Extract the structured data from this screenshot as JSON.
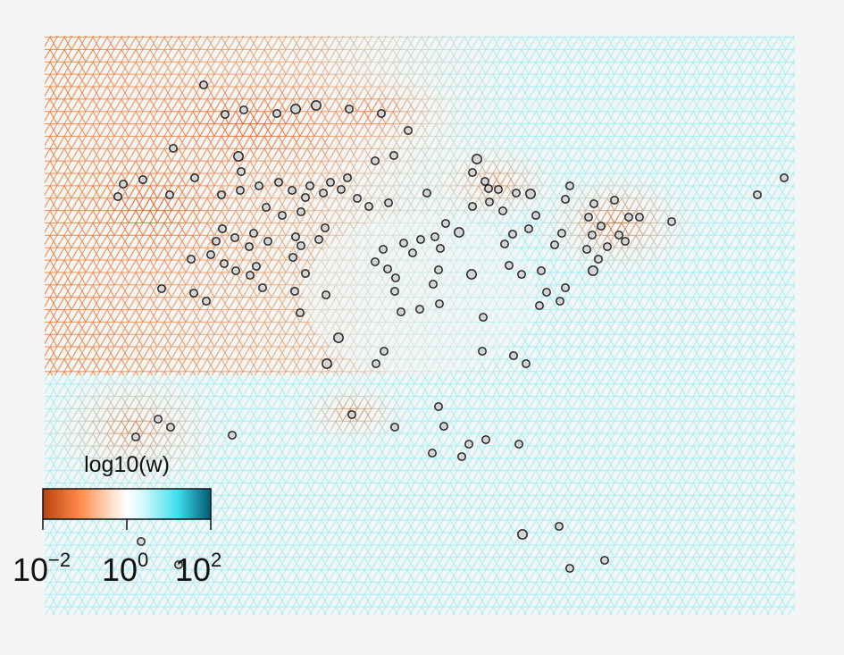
{
  "chart_data": {
    "type": "scatter",
    "colors": {
      "low": "#b8440f",
      "mid_low": "#ffa066",
      "neutral": "#ffffff",
      "mid_high": "#58e6f2",
      "high": "#004e66",
      "background": "#f4f5f5",
      "point_fill": "#d4d4d4",
      "point_stroke": "#1a1a1a"
    },
    "background_mesh": "triangular grid colored by log10(w)",
    "legend": {
      "title": "log10(w)",
      "placement": "bottom-left",
      "ticks": [
        {
          "base": "10",
          "exp": "−2"
        },
        {
          "base": "10",
          "exp": "0"
        },
        {
          "base": "10",
          "exp": "2"
        }
      ],
      "range": [
        -2,
        2
      ]
    },
    "points": [
      [
        228,
        95
      ],
      [
        252,
        128
      ],
      [
        273,
        123
      ],
      [
        310,
        127
      ],
      [
        331,
        122
      ],
      [
        354,
        118
      ],
      [
        391,
        122
      ],
      [
        427,
        127
      ],
      [
        457,
        146
      ],
      [
        194,
        166
      ],
      [
        267,
        175
      ],
      [
        270,
        192
      ],
      [
        138,
        206
      ],
      [
        160,
        201
      ],
      [
        132,
        220
      ],
      [
        218,
        199
      ],
      [
        190,
        218
      ],
      [
        248,
        218
      ],
      [
        269,
        213
      ],
      [
        290,
        208
      ],
      [
        312,
        204
      ],
      [
        327,
        213
      ],
      [
        347,
        208
      ],
      [
        370,
        204
      ],
      [
        389,
        199
      ],
      [
        420,
        180
      ],
      [
        441,
        174
      ],
      [
        342,
        221
      ],
      [
        362,
        216
      ],
      [
        382,
        212
      ],
      [
        400,
        222
      ],
      [
        413,
        231
      ],
      [
        435,
        227
      ],
      [
        478,
        216
      ],
      [
        298,
        232
      ],
      [
        316,
        241
      ],
      [
        337,
        237
      ],
      [
        249,
        256
      ],
      [
        263,
        266
      ],
      [
        279,
        276
      ],
      [
        242,
        270
      ],
      [
        284,
        261
      ],
      [
        300,
        270
      ],
      [
        214,
        290
      ],
      [
        236,
        285
      ],
      [
        251,
        295
      ],
      [
        264,
        303
      ],
      [
        280,
        308
      ],
      [
        287,
        298
      ],
      [
        294,
        322
      ],
      [
        217,
        328
      ],
      [
        231,
        337
      ],
      [
        181,
        323
      ],
      [
        328,
        288
      ],
      [
        331,
        265
      ],
      [
        337,
        275
      ],
      [
        357,
        268
      ],
      [
        364,
        255
      ],
      [
        342,
        306
      ],
      [
        330,
        326
      ],
      [
        336,
        350
      ],
      [
        365,
        330
      ],
      [
        379,
        378
      ],
      [
        366,
        407
      ],
      [
        421,
        407
      ],
      [
        430,
        393
      ],
      [
        429,
        279
      ],
      [
        420,
        293
      ],
      [
        434,
        301
      ],
      [
        443,
        311
      ],
      [
        442,
        326
      ],
      [
        452,
        272
      ],
      [
        462,
        283
      ],
      [
        471,
        268
      ],
      [
        487,
        265
      ],
      [
        499,
        250
      ],
      [
        493,
        278
      ],
      [
        491,
        302
      ],
      [
        485,
        318
      ],
      [
        470,
        346
      ],
      [
        492,
        340
      ],
      [
        449,
        349
      ],
      [
        514,
        260
      ],
      [
        528,
        307
      ],
      [
        534,
        178
      ],
      [
        529,
        193
      ],
      [
        543,
        203
      ],
      [
        529,
        231
      ],
      [
        547,
        211
      ],
      [
        558,
        212
      ],
      [
        548,
        226
      ],
      [
        563,
        236
      ],
      [
        578,
        216
      ],
      [
        594,
        217
      ],
      [
        574,
        262
      ],
      [
        592,
        256
      ],
      [
        600,
        241
      ],
      [
        565,
        273
      ],
      [
        541,
        355
      ],
      [
        570,
        297
      ],
      [
        584,
        307
      ],
      [
        606,
        303
      ],
      [
        612,
        327
      ],
      [
        604,
        342
      ],
      [
        627,
        337
      ],
      [
        633,
        322
      ],
      [
        629,
        261
      ],
      [
        621,
        274
      ],
      [
        633,
        223
      ],
      [
        638,
        208
      ],
      [
        659,
        243
      ],
      [
        673,
        253
      ],
      [
        665,
        228
      ],
      [
        688,
        224
      ],
      [
        704,
        243
      ],
      [
        716,
        243
      ],
      [
        752,
        248
      ],
      [
        663,
        263
      ],
      [
        657,
        279
      ],
      [
        670,
        290
      ],
      [
        680,
        276
      ],
      [
        693,
        263
      ],
      [
        700,
        270
      ],
      [
        664,
        303
      ],
      [
        848,
        218
      ],
      [
        878,
        199
      ],
      [
        540,
        393
      ],
      [
        575,
        398
      ],
      [
        589,
        407
      ],
      [
        394,
        464
      ],
      [
        442,
        478
      ],
      [
        491,
        455
      ],
      [
        497,
        477
      ],
      [
        525,
        497
      ],
      [
        544,
        492
      ],
      [
        517,
        511
      ],
      [
        484,
        507
      ],
      [
        581,
        497
      ],
      [
        177,
        469
      ],
      [
        191,
        478
      ],
      [
        152,
        489
      ],
      [
        260,
        487
      ],
      [
        585,
        598
      ],
      [
        626,
        589
      ],
      [
        638,
        636
      ],
      [
        677,
        627
      ],
      [
        158,
        606
      ],
      [
        200,
        632
      ]
    ],
    "point_sizes": {
      "large": [
        [
          267,
          175
        ],
        [
          331,
          122
        ],
        [
          354,
          118
        ],
        [
          528,
          307
        ],
        [
          564,
          236
        ],
        [
          666,
          228
        ],
        [
          594,
          217
        ],
        [
          585,
          598
        ],
        [
          379,
          378
        ],
        [
          366,
          407
        ],
        [
          534,
          178
        ],
        [
          514,
          260
        ],
        [
          664,
          303
        ]
      ]
    }
  }
}
